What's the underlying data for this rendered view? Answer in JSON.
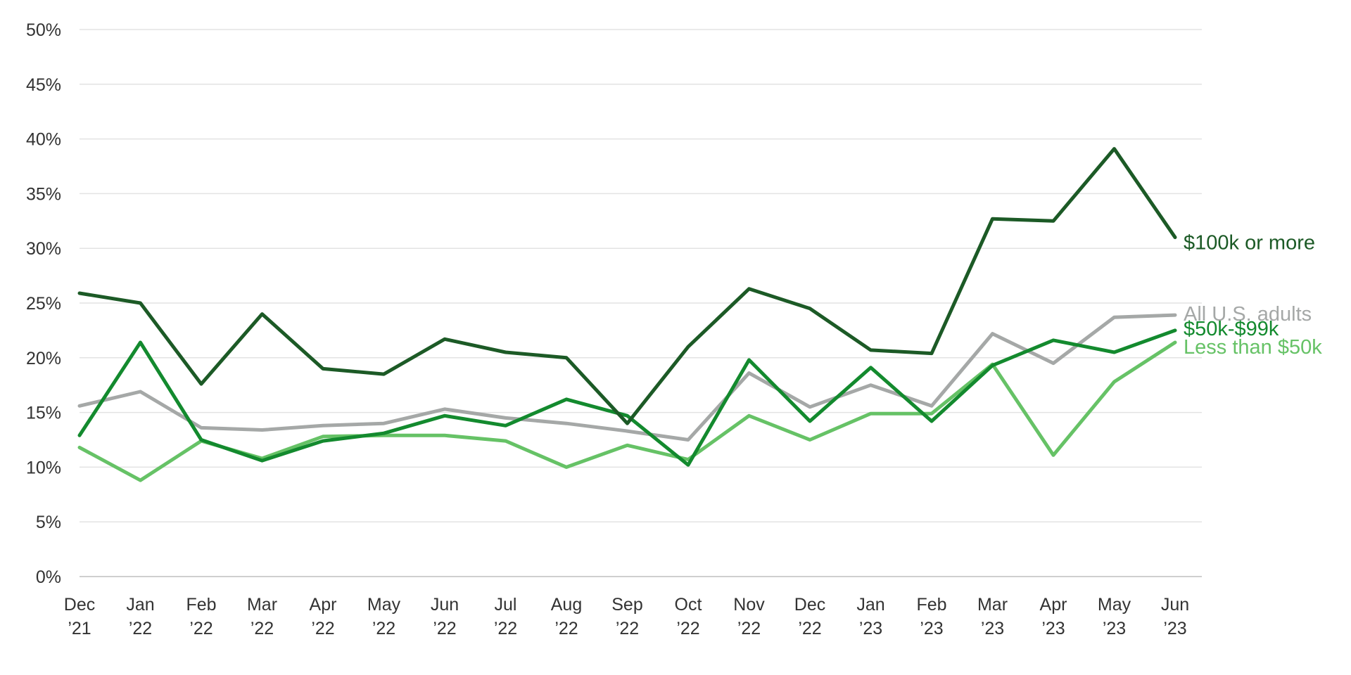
{
  "chart_data": {
    "type": "line",
    "title": "",
    "xlabel": "",
    "ylabel": "",
    "ylim": [
      0,
      50
    ],
    "y_ticks": [
      0,
      5,
      10,
      15,
      20,
      25,
      30,
      35,
      40,
      45,
      50
    ],
    "y_tick_format": "percent",
    "grid": true,
    "legend": "inline-right",
    "categories": [
      [
        "Dec",
        "’21"
      ],
      [
        "Jan",
        "’22"
      ],
      [
        "Feb",
        "’22"
      ],
      [
        "Mar",
        "’22"
      ],
      [
        "Apr",
        "’22"
      ],
      [
        "May",
        "’22"
      ],
      [
        "Jun",
        "’22"
      ],
      [
        "Jul",
        "’22"
      ],
      [
        "Aug",
        "’22"
      ],
      [
        "Sep",
        "’22"
      ],
      [
        "Oct",
        "’22"
      ],
      [
        "Nov",
        "’22"
      ],
      [
        "Dec",
        "’22"
      ],
      [
        "Jan",
        "’23"
      ],
      [
        "Feb",
        "’23"
      ],
      [
        "Mar",
        "’23"
      ],
      [
        "Apr",
        "’23"
      ],
      [
        "May",
        "’23"
      ],
      [
        "Jun",
        "’23"
      ]
    ],
    "series": [
      {
        "name": "All U.S. adults",
        "color": "#a5a8a7",
        "values": [
          15.6,
          16.9,
          13.6,
          13.4,
          13.8,
          14.0,
          15.3,
          14.5,
          14.0,
          13.3,
          12.5,
          18.6,
          15.5,
          17.5,
          15.6,
          22.2,
          19.5,
          23.7,
          23.9
        ]
      },
      {
        "name": "Less than $50k",
        "color": "#66c266",
        "values": [
          11.8,
          8.8,
          12.4,
          10.8,
          12.8,
          12.9,
          12.9,
          12.4,
          10.0,
          12.0,
          10.7,
          14.7,
          12.5,
          14.9,
          14.9,
          19.4,
          11.1,
          17.8,
          21.4
        ]
      },
      {
        "name": "$50k-$99k",
        "color": "#138a2e",
        "values": [
          12.9,
          21.4,
          12.5,
          10.6,
          12.4,
          13.1,
          14.7,
          13.8,
          16.2,
          14.7,
          10.2,
          19.8,
          14.2,
          19.1,
          14.2,
          19.3,
          21.6,
          20.5,
          22.5
        ]
      },
      {
        "name": "$100k or more",
        "color": "#1c5a26",
        "values": [
          25.9,
          25.0,
          17.6,
          24.0,
          19.0,
          18.5,
          21.7,
          20.5,
          20.0,
          14.0,
          21.0,
          26.3,
          24.5,
          20.7,
          20.4,
          32.7,
          32.5,
          39.1,
          31.0
        ]
      }
    ]
  }
}
